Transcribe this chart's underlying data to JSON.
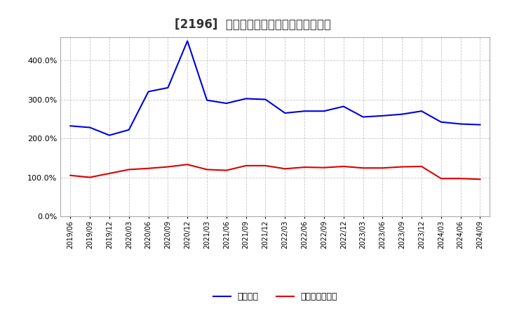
{
  "title": "[2196]  固定比率、固定長期適合率の推移",
  "blue_label": "固定比率",
  "red_label": "固定長期適合率",
  "dates": [
    "2019/06",
    "2019/09",
    "2019/12",
    "2020/03",
    "2020/06",
    "2020/09",
    "2020/12",
    "2021/03",
    "2021/06",
    "2021/09",
    "2021/12",
    "2022/03",
    "2022/06",
    "2022/09",
    "2022/12",
    "2023/03",
    "2023/06",
    "2023/09",
    "2023/12",
    "2024/03",
    "2024/06",
    "2024/09"
  ],
  "blue_values": [
    232,
    228,
    208,
    222,
    320,
    330,
    450,
    298,
    290,
    302,
    300,
    265,
    270,
    270,
    282,
    255,
    258,
    262,
    270,
    242,
    237,
    235
  ],
  "red_values": [
    105,
    100,
    110,
    120,
    123,
    127,
    133,
    120,
    118,
    130,
    130,
    122,
    126,
    125,
    128,
    124,
    124,
    127,
    128,
    97,
    97,
    95
  ],
  "ylim_min": 0,
  "ylim_max": 450,
  "yticks": [
    0,
    100,
    200,
    300,
    400
  ],
  "background_color": "#ffffff",
  "plot_bg_color": "#ffffff",
  "grid_color": "#c8c8c8",
  "blue_color": "#0000dd",
  "red_color": "#dd0000",
  "title_fontsize": 12,
  "tick_fontsize": 7,
  "legend_fontsize": 9
}
